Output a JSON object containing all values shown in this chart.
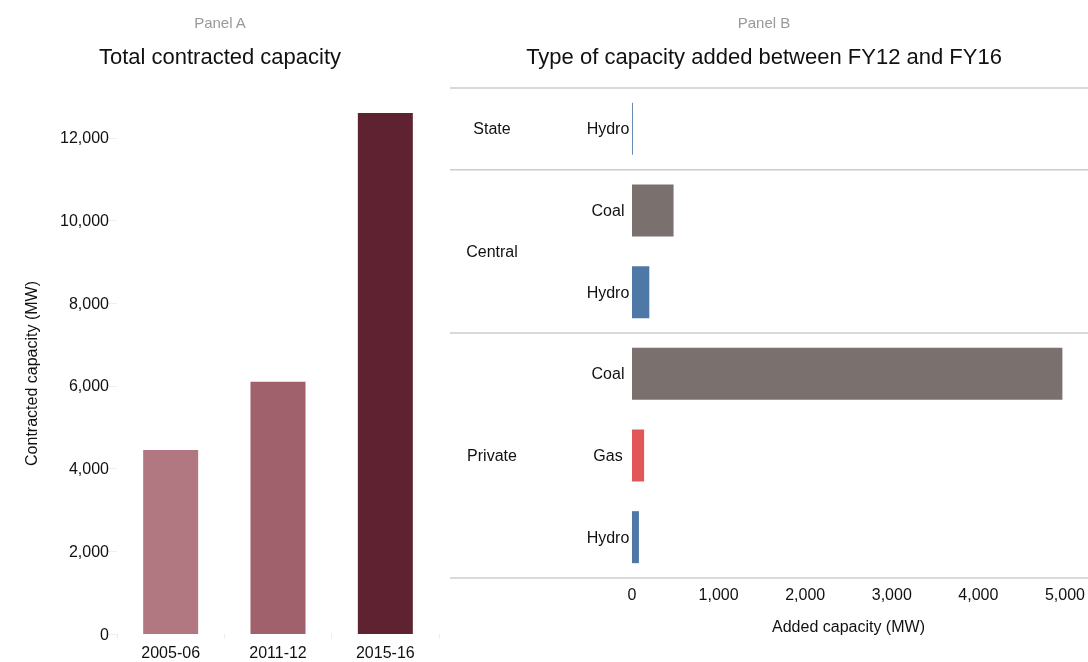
{
  "chart_data": [
    {
      "type": "bar",
      "subtitle": "Panel A",
      "title": "Total contracted capacity",
      "ylabel": "Contracted capacity (MW)",
      "categories": [
        "2005-06",
        "2011-12",
        "2015-16"
      ],
      "values": [
        4450,
        6100,
        12600
      ],
      "colors": [
        "#b27882",
        "#a0606c",
        "#5e2230"
      ],
      "ylim": [
        0,
        12600
      ],
      "yticks": [
        {
          "value": 0,
          "label": "0"
        },
        {
          "value": 2000,
          "label": "2,000"
        },
        {
          "value": 4000,
          "label": "4,000"
        },
        {
          "value": 6000,
          "label": "6,000"
        },
        {
          "value": 8000,
          "label": "8,000"
        },
        {
          "value": 10000,
          "label": "10,000"
        },
        {
          "value": 12000,
          "label": "12,000"
        }
      ]
    },
    {
      "type": "bar",
      "orientation": "horizontal",
      "stacked": true,
      "subtitle": "Panel B",
      "title": "Type of capacity added between FY12 and FY16",
      "xlabel": "Added capacity (MW)",
      "categories": [
        "Hydro",
        "Coal",
        "Hydro",
        "Coal",
        "Gas",
        "Hydro"
      ],
      "annotations": [
        "State",
        "Central",
        "Private"
      ],
      "series": [
        {
          "colors": [
            "#4e79a7",
            null,
            null,
            null,
            null,
            null
          ],
          "values": [
            10,
            null,
            null,
            null,
            null,
            null
          ]
        },
        {
          "colors": [
            null,
            "#7a706e",
            "#4e79a7",
            null,
            null,
            null
          ],
          "values": [
            null,
            480,
            200,
            null,
            null,
            null
          ]
        },
        {
          "colors": [
            null,
            null,
            null,
            "#7a706e",
            "#e15759",
            "#4e79a7"
          ],
          "values": [
            null,
            null,
            null,
            4970,
            140,
            80
          ]
        }
      ],
      "xlim": [
        0,
        5000
      ],
      "xticks": [
        {
          "value": 0,
          "label": "0"
        },
        {
          "value": 1000,
          "label": "1,000"
        },
        {
          "value": 2000,
          "label": "2,000"
        },
        {
          "value": 3000,
          "label": "3,000"
        },
        {
          "value": 4000,
          "label": "4,000"
        },
        {
          "value": 5000,
          "label": "5,000"
        }
      ]
    }
  ]
}
